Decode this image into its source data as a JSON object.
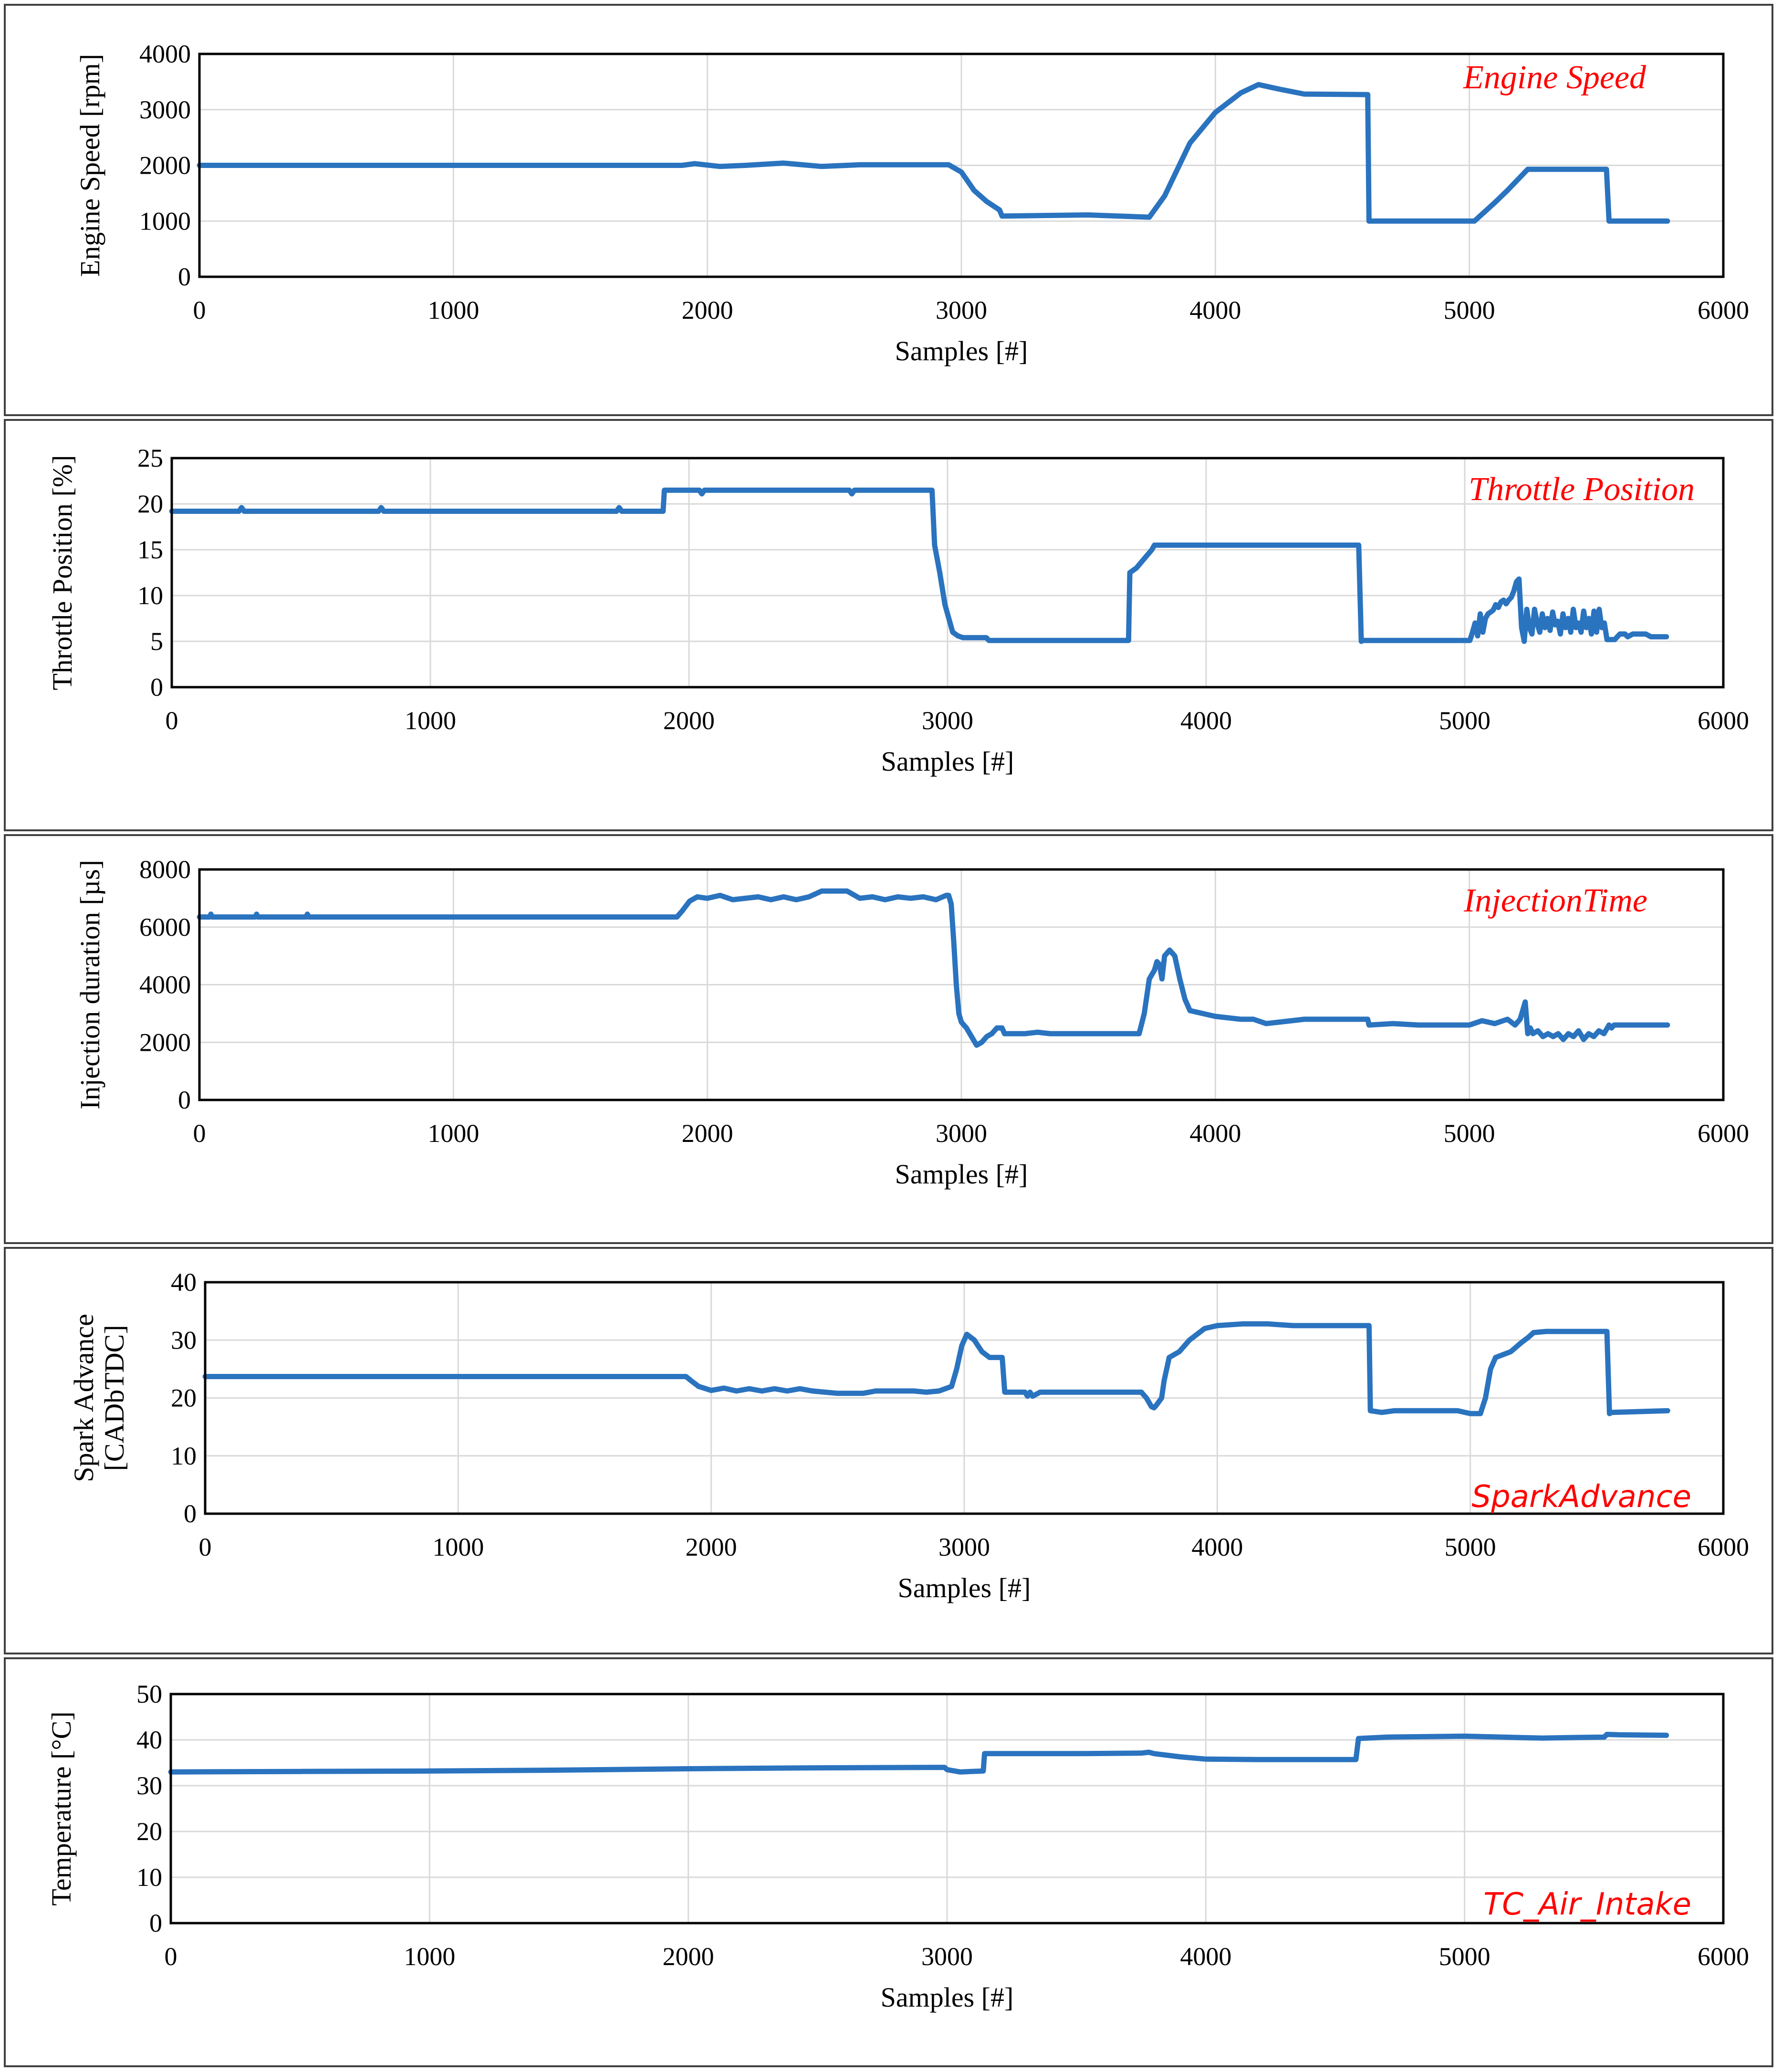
{
  "chart_data": [
    {
      "type": "line",
      "title": "Engine Speed",
      "xlabel": "Samples [#]",
      "ylabel": "Engine Speed [rpm]",
      "xlim": [
        0,
        6000
      ],
      "ylim": [
        0,
        4000
      ],
      "xticks": [
        0,
        1000,
        2000,
        3000,
        4000,
        5000,
        6000
      ],
      "yticks": [
        0,
        1000,
        2000,
        3000,
        4000
      ],
      "grid": true,
      "series": [
        {
          "name": "Engine Speed",
          "color": "#2a73bf",
          "x": [
            0,
            1900,
            1950,
            2050,
            2150,
            2300,
            2450,
            2600,
            2950,
            3000,
            3050,
            3100,
            3150,
            3160,
            3500,
            3740,
            3800,
            3900,
            4000,
            4100,
            4170,
            4250,
            4350,
            4600,
            4605,
            5020,
            5100,
            5150,
            5230,
            5540,
            5550,
            5780
          ],
          "y": [
            2000,
            2000,
            2030,
            1980,
            2000,
            2040,
            1980,
            2010,
            2010,
            1880,
            1550,
            1350,
            1200,
            1090,
            1110,
            1070,
            1450,
            2400,
            2950,
            3300,
            3450,
            3370,
            3280,
            3270,
            1000,
            1000,
            1330,
            1550,
            1930,
            1930,
            1000,
            1000
          ]
        }
      ]
    },
    {
      "type": "line",
      "title": "Throttle Position",
      "xlabel": "Samples [#]",
      "ylabel": "Throttle Position  [%]",
      "xlim": [
        0,
        6000
      ],
      "ylim": [
        0,
        25
      ],
      "xticks": [
        0,
        1000,
        2000,
        3000,
        4000,
        5000,
        6000
      ],
      "yticks": [
        0,
        5,
        10,
        15,
        20,
        25
      ],
      "grid": true,
      "series": [
        {
          "name": "Throttle Position",
          "color": "#2a73bf",
          "x": [
            0,
            260,
            270,
            280,
            800,
            810,
            820,
            1720,
            1730,
            1740,
            1900,
            1905,
            2040,
            2050,
            2060,
            2620,
            2630,
            2640,
            2940,
            2950,
            2970,
            2990,
            3010,
            3020,
            3040,
            3060,
            3100,
            3150,
            3160,
            3700,
            3705,
            3730,
            3760,
            3790,
            3800,
            3810,
            4590,
            4600,
            4605,
            5020,
            5030,
            5040,
            5050,
            5060,
            5070,
            5080,
            5090,
            5100,
            5110,
            5120,
            5130,
            5140,
            5150,
            5160,
            5170,
            5180,
            5190,
            5200,
            5210,
            5220,
            5230,
            5240,
            5250,
            5260,
            5270,
            5280,
            5290,
            5300,
            5310,
            5320,
            5330,
            5340,
            5350,
            5360,
            5370,
            5380,
            5390,
            5400,
            5410,
            5420,
            5430,
            5440,
            5450,
            5460,
            5470,
            5480,
            5490,
            5500,
            5510,
            5520,
            5530,
            5540,
            5550,
            5560,
            5570,
            5580,
            5600,
            5620,
            5630,
            5650,
            5700,
            5720,
            5760,
            5780
          ],
          "y": [
            19.2,
            19.2,
            19.6,
            19.2,
            19.2,
            19.6,
            19.2,
            19.2,
            19.6,
            19.2,
            19.2,
            21.5,
            21.5,
            21.1,
            21.5,
            21.5,
            21.1,
            21.5,
            21.5,
            15.5,
            12.5,
            9,
            7,
            6,
            5.6,
            5.4,
            5.4,
            5.4,
            5.1,
            5.1,
            12.5,
            13,
            14,
            15,
            15.5,
            15.5,
            15.5,
            5,
            5.1,
            5.1,
            6,
            7,
            5.6,
            8,
            6,
            7.5,
            8,
            8.2,
            8.4,
            9,
            8.7,
            9.3,
            9.5,
            9.1,
            9.5,
            9.8,
            10.5,
            11.5,
            11.8,
            6.5,
            5,
            8.5,
            6.5,
            5.8,
            8.5,
            7,
            6,
            8,
            6.5,
            7.5,
            6.2,
            8.2,
            6.8,
            7.2,
            5.8,
            8,
            6.5,
            7.5,
            6,
            8.5,
            6.5,
            7,
            6,
            8.3,
            6.5,
            7.5,
            5.8,
            8.3,
            6,
            8.5,
            6.5,
            7,
            5.2,
            5.2,
            5.2,
            5.2,
            5.8,
            5.8,
            5.5,
            5.8,
            5.8,
            5.5,
            5.5,
            5.5
          ]
        }
      ]
    },
    {
      "type": "line",
      "title": "InjectionTime",
      "xlabel": "Samples [#]",
      "ylabel": "Injection duration [µs]",
      "xlim": [
        0,
        6000
      ],
      "ylim": [
        0,
        8000
      ],
      "xticks": [
        0,
        1000,
        2000,
        3000,
        4000,
        5000,
        6000
      ],
      "yticks": [
        0,
        2000,
        4000,
        6000,
        8000
      ],
      "grid": true,
      "series": [
        {
          "name": "InjectionTime",
          "color": "#2a73bf",
          "x": [
            0,
            40,
            45,
            50,
            220,
            225,
            230,
            420,
            425,
            430,
            1880,
            1900,
            1930,
            1960,
            2000,
            2050,
            2100,
            2200,
            2250,
            2300,
            2350,
            2400,
            2450,
            2500,
            2550,
            2600,
            2650,
            2700,
            2750,
            2800,
            2850,
            2900,
            2940,
            2950,
            2960,
            2970,
            2980,
            2990,
            3000,
            3020,
            3040,
            3060,
            3080,
            3100,
            3120,
            3140,
            3160,
            3170,
            3250,
            3300,
            3350,
            3400,
            3700,
            3720,
            3740,
            3760,
            3770,
            3780,
            3790,
            3800,
            3820,
            3840,
            3860,
            3880,
            3900,
            4000,
            4100,
            4150,
            4200,
            4250,
            4300,
            4350,
            4600,
            4605,
            4700,
            4800,
            5000,
            5050,
            5100,
            5150,
            5180,
            5200,
            5210,
            5220,
            5230,
            5240,
            5250,
            5270,
            5290,
            5310,
            5330,
            5350,
            5370,
            5390,
            5410,
            5430,
            5450,
            5470,
            5490,
            5510,
            5530,
            5550,
            5560,
            5570,
            5780
          ],
          "y": [
            6350,
            6350,
            6450,
            6350,
            6350,
            6450,
            6350,
            6350,
            6450,
            6350,
            6350,
            6550,
            6900,
            7050,
            7000,
            7100,
            6950,
            7050,
            6950,
            7050,
            6950,
            7050,
            7250,
            7250,
            7250,
            7000,
            7050,
            6950,
            7050,
            7000,
            7050,
            6950,
            7100,
            7100,
            6800,
            5500,
            4000,
            3000,
            2700,
            2500,
            2200,
            1900,
            2000,
            2200,
            2300,
            2500,
            2500,
            2300,
            2300,
            2350,
            2300,
            2300,
            2300,
            3000,
            4200,
            4500,
            4800,
            4700,
            4200,
            5000,
            5200,
            5000,
            4200,
            3500,
            3100,
            2900,
            2800,
            2800,
            2650,
            2700,
            2750,
            2800,
            2800,
            2600,
            2650,
            2600,
            2600,
            2750,
            2650,
            2800,
            2600,
            2800,
            3100,
            3400,
            2300,
            2500,
            2300,
            2400,
            2200,
            2300,
            2200,
            2300,
            2100,
            2300,
            2200,
            2400,
            2100,
            2300,
            2200,
            2400,
            2300,
            2600,
            2500,
            2600,
            2600
          ]
        }
      ]
    },
    {
      "type": "line",
      "title": "SparkAdvance",
      "xlabel": "Samples [#]",
      "ylabel": "Spark Advance [CADbTDC]",
      "ylabel_lines": [
        "Spark Advance",
        "[CADbTDC]"
      ],
      "xlim": [
        0,
        6000
      ],
      "ylim": [
        0,
        40
      ],
      "xticks": [
        0,
        1000,
        2000,
        3000,
        4000,
        5000,
        6000
      ],
      "yticks": [
        0,
        10,
        20,
        30,
        40
      ],
      "grid": true,
      "series": [
        {
          "name": "SparkAdvance",
          "color": "#2a73bf",
          "x": [
            0,
            1900,
            1920,
            1950,
            2000,
            2050,
            2100,
            2150,
            2200,
            2250,
            2300,
            2350,
            2400,
            2450,
            2500,
            2550,
            2600,
            2650,
            2700,
            2750,
            2800,
            2850,
            2900,
            2950,
            2970,
            2990,
            3010,
            3040,
            3070,
            3100,
            3150,
            3160,
            3240,
            3250,
            3260,
            3270,
            3300,
            3700,
            3720,
            3740,
            3750,
            3760,
            3780,
            3790,
            3810,
            3850,
            3870,
            3890,
            3920,
            3950,
            4000,
            4100,
            4200,
            4300,
            4600,
            4605,
            4650,
            4700,
            4950,
            5000,
            5040,
            5060,
            5080,
            5100,
            5130,
            5160,
            5200,
            5230,
            5250,
            5300,
            5540,
            5550,
            5560,
            5780
          ],
          "y": [
            23.7,
            23.7,
            23,
            22,
            21.3,
            21.7,
            21.2,
            21.6,
            21.2,
            21.6,
            21.2,
            21.6,
            21.2,
            21,
            20.8,
            20.8,
            20.8,
            21.2,
            21.2,
            21.2,
            21.2,
            21,
            21.2,
            22,
            25,
            29,
            31,
            30,
            28,
            27,
            27,
            21,
            21,
            20.3,
            21,
            20.3,
            21,
            21,
            20,
            18.5,
            18.3,
            18.8,
            20,
            23,
            27,
            28,
            29,
            30,
            31,
            32,
            32.5,
            32.8,
            32.8,
            32.5,
            32.5,
            17.8,
            17.5,
            17.8,
            17.8,
            17.3,
            17.3,
            20,
            25,
            27,
            27.5,
            28,
            29.5,
            30.5,
            31.3,
            31.5,
            31.5,
            17.3,
            17.5,
            17.8
          ]
        }
      ]
    },
    {
      "type": "line",
      "title": "TC_Air_Intake",
      "xlabel": "Samples [#]",
      "ylabel": "Temperature [°C]",
      "xlim": [
        0,
        6000
      ],
      "ylim": [
        0,
        50
      ],
      "xticks": [
        0,
        1000,
        2000,
        3000,
        4000,
        5000,
        6000
      ],
      "yticks": [
        0,
        10,
        20,
        30,
        40,
        50
      ],
      "grid": true,
      "series": [
        {
          "name": "TC_Air_Intake",
          "color": "#2a73bf",
          "x": [
            0,
            500,
            1000,
            1500,
            2000,
            2500,
            2990,
            3000,
            3050,
            3140,
            3145,
            3500,
            3750,
            3780,
            3800,
            3900,
            4000,
            4200,
            4580,
            4590,
            4700,
            5000,
            5300,
            5400,
            5540,
            5550,
            5600,
            5780
          ],
          "y": [
            33,
            33.1,
            33.2,
            33.4,
            33.7,
            33.9,
            34,
            33.5,
            33,
            33.2,
            37,
            37,
            37.1,
            37.3,
            37,
            36.3,
            35.8,
            35.7,
            35.7,
            40.3,
            40.6,
            40.8,
            40.4,
            40.5,
            40.6,
            41.2,
            41.1,
            41
          ]
        }
      ]
    }
  ]
}
